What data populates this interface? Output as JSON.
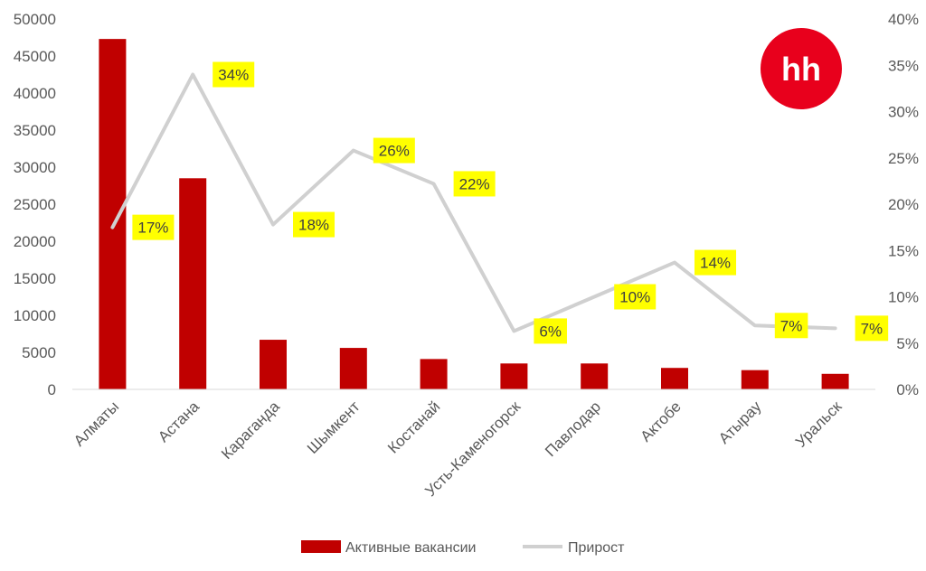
{
  "chart_data": {
    "type": "bar+line",
    "categories": [
      "Алматы",
      "Астана",
      "Караганда",
      "Шымкент",
      "Костанай",
      "Усть-Каменогорск",
      "Павлодар",
      "Актобе",
      "Атырау",
      "Уральск"
    ],
    "series": [
      {
        "name": "Активные вакансии",
        "type": "bar",
        "axis": "left",
        "color": "#c00000",
        "values": [
          47300,
          28500,
          6700,
          5600,
          4100,
          3500,
          3500,
          2900,
          2600,
          2100
        ]
      },
      {
        "name": "Прирост",
        "type": "line",
        "axis": "right",
        "color": "#d0d0d0",
        "values": [
          17.5,
          34,
          17.8,
          25.8,
          22.2,
          6.3,
          10,
          13.7,
          6.9,
          6.6
        ],
        "data_labels": [
          "17%",
          "34%",
          "18%",
          "26%",
          "22%",
          "6%",
          "10%",
          "14%",
          "7%",
          "7%"
        ],
        "label_background": "#ffff00"
      }
    ],
    "y_left": {
      "min": 0,
      "max": 50000,
      "ticks": [
        0,
        5000,
        10000,
        15000,
        20000,
        25000,
        30000,
        35000,
        40000,
        45000,
        50000
      ],
      "tick_labels": [
        "0",
        "5000",
        "10000",
        "15000",
        "20000",
        "25000",
        "30000",
        "35000",
        "40000",
        "45000",
        "50000"
      ]
    },
    "y_right": {
      "min": 0,
      "max": 40,
      "ticks": [
        0,
        5,
        10,
        15,
        20,
        25,
        30,
        35,
        40
      ],
      "tick_labels": [
        "0%",
        "5%",
        "10%",
        "15%",
        "20%",
        "25%",
        "30%",
        "35%",
        "40%"
      ]
    },
    "grid": false,
    "legend": "bottom-center",
    "title": "",
    "xlabel": "",
    "ylabel": ""
  },
  "logo": {
    "text": "hh",
    "color": "#e8001c"
  }
}
